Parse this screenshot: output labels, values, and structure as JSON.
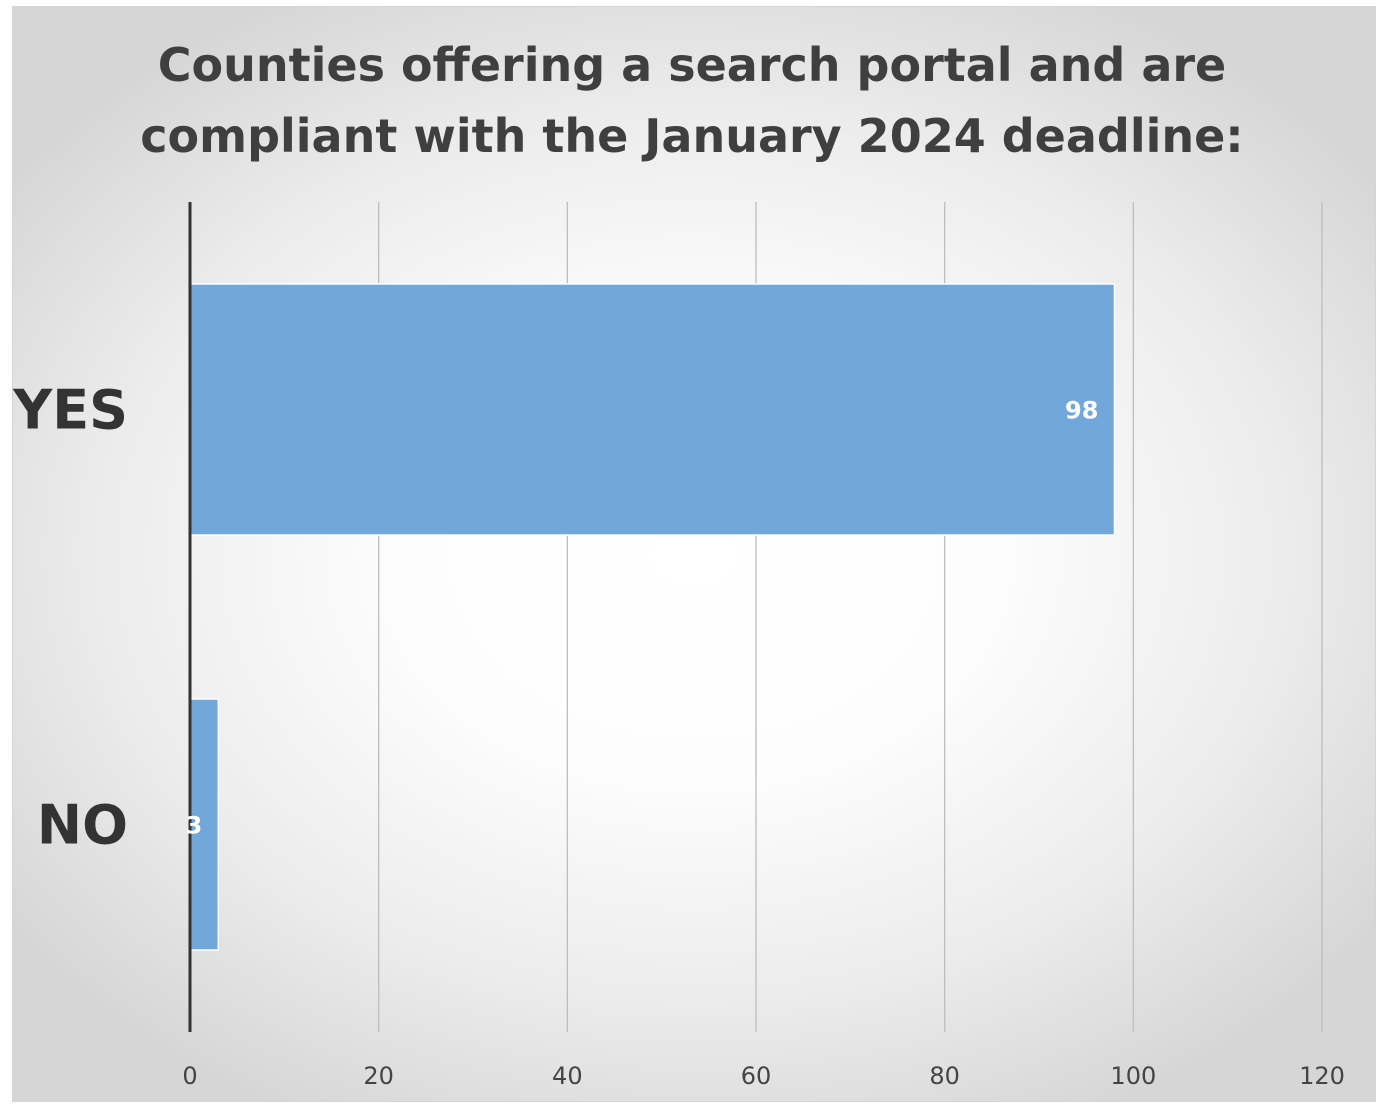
{
  "chart_data": {
    "type": "bar",
    "orientation": "horizontal",
    "title": "Counties offering a search portal and are\ncompliant with the January 2024 deadline:",
    "categories": [
      "YES",
      "NO"
    ],
    "values": [
      98,
      3
    ],
    "data_labels": [
      "98",
      "3"
    ],
    "xlabel": "",
    "ylabel": "",
    "xlim": [
      0,
      120
    ],
    "ticks": [
      0,
      20,
      40,
      60,
      80,
      100,
      120
    ],
    "tick_labels": [
      "0",
      "20",
      "40",
      "60",
      "80",
      "100",
      "120"
    ],
    "grid": true,
    "legend": "none",
    "colors": {
      "bar": "#72a7da",
      "bar_edge": "#ffffff",
      "gridline": "#bdbdbd",
      "axis": "#333333"
    }
  }
}
